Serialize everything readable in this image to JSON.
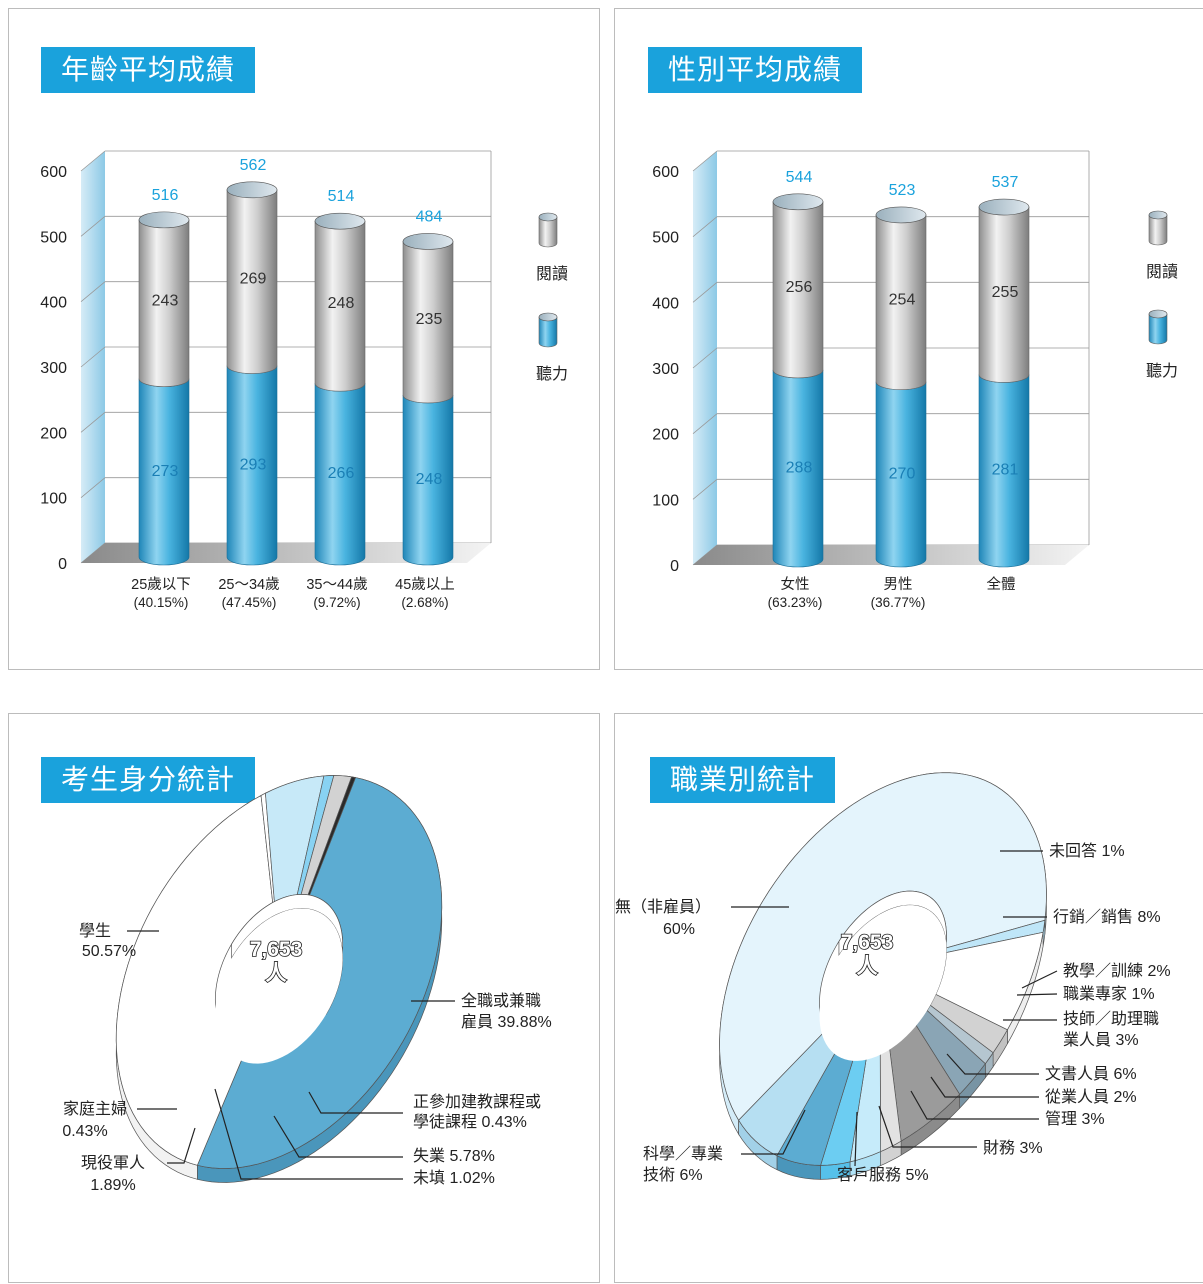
{
  "chart_data": [
    {
      "type": "bar",
      "title": "年齡平均成績",
      "stacked": true,
      "categories": [
        "25歲以下",
        "25～34歲",
        "35～44歲",
        "45歲以上"
      ],
      "category_shares": [
        "(40.15%)",
        "(47.45%)",
        "(9.72%)",
        "(2.68%)"
      ],
      "series": [
        {
          "name": "聽力",
          "values": [
            273,
            293,
            266,
            248
          ]
        },
        {
          "name": "閱讀",
          "values": [
            243,
            269,
            248,
            235
          ]
        }
      ],
      "totals": [
        516,
        562,
        514,
        484
      ],
      "ylim": [
        0,
        600
      ],
      "yticks": [
        "600",
        "500",
        "400",
        "300",
        "200",
        "100",
        "0"
      ],
      "grid": true,
      "legend": "right"
    },
    {
      "type": "bar",
      "title": "性別平均成績",
      "stacked": true,
      "categories": [
        "女性",
        "男性",
        "全體"
      ],
      "category_shares": [
        "(63.23%)",
        "(36.77%)",
        ""
      ],
      "series": [
        {
          "name": "聽力",
          "values": [
            288,
            270,
            281
          ]
        },
        {
          "name": "閱讀",
          "values": [
            256,
            254,
            255
          ]
        }
      ],
      "totals": [
        544,
        523,
        537
      ],
      "ylim": [
        0,
        600
      ],
      "yticks": [
        "600",
        "500",
        "400",
        "300",
        "200",
        "100",
        "0"
      ],
      "grid": true,
      "legend": "right"
    },
    {
      "type": "pie",
      "title": "考生身分統計",
      "center_text": [
        "7,653",
        "人"
      ],
      "slices": [
        {
          "label": "學生",
          "value_text": "50.57%",
          "value": 50.57
        },
        {
          "label": "全職或兼職雇員",
          "value_text": "39.88%",
          "value": 39.88
        },
        {
          "label": "正參加建教課程或學徒課程",
          "value_text": "0.43%",
          "value": 0.43
        },
        {
          "label": "失業",
          "value_text": "5.78%",
          "value": 5.78
        },
        {
          "label": "未填",
          "value_text": "1.02%",
          "value": 1.02
        },
        {
          "label": "現役軍人",
          "value_text": "1.89%",
          "value": 1.89
        },
        {
          "label": "家庭主婦",
          "value_text": "0.43%",
          "value": 0.43
        }
      ]
    },
    {
      "type": "pie",
      "title": "職業別統計",
      "center_text": [
        "7,653",
        "人"
      ],
      "slices": [
        {
          "label": "無（非雇員）",
          "value_text": "60%",
          "value": 60
        },
        {
          "label": "未回答",
          "value_text": "1%",
          "value": 1
        },
        {
          "label": "行銷／銷售",
          "value_text": "8%",
          "value": 8
        },
        {
          "label": "教學／訓練",
          "value_text": "2%",
          "value": 2
        },
        {
          "label": "職業專家",
          "value_text": "1%",
          "value": 1
        },
        {
          "label": "技師／助理職業人員",
          "value_text": "3%",
          "value": 3
        },
        {
          "label": "文書人員",
          "value_text": "6%",
          "value": 6
        },
        {
          "label": "從業人員",
          "value_text": "2%",
          "value": 2
        },
        {
          "label": "管理",
          "value_text": "3%",
          "value": 3
        },
        {
          "label": "財務",
          "value_text": "3%",
          "value": 3
        },
        {
          "label": "客戶服務",
          "value_text": "5%",
          "value": 5
        },
        {
          "label": "科學／專業技術",
          "value_text": "6%",
          "value": 6
        }
      ]
    }
  ]
}
